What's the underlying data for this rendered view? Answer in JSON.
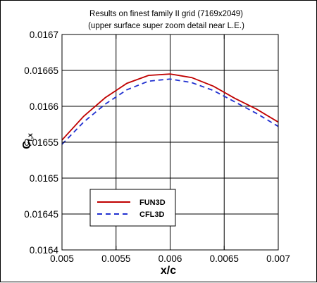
{
  "chart_data": {
    "type": "line",
    "title": "Results on finest family II grid (7169x2049)",
    "subtitle": "(upper surface super zoom detail near L.E.)",
    "xlabel": "x/c",
    "ylabel": "C",
    "ylabel_subscript": "f,x",
    "xlim": [
      0.005,
      0.007
    ],
    "ylim": [
      0.0164,
      0.0167
    ],
    "xticks": [
      0.005,
      0.0055,
      0.006,
      0.0065,
      0.007
    ],
    "xtick_labels": [
      "0.005",
      "0.0055",
      "0.006",
      "0.0065",
      "0.007"
    ],
    "yticks": [
      0.0164,
      0.01645,
      0.0165,
      0.01655,
      0.0166,
      0.01665,
      0.0167
    ],
    "ytick_labels": [
      "0.0164",
      "0.01645",
      "0.0165",
      "0.01655",
      "0.0166",
      "0.01665",
      "0.0167"
    ],
    "grid": true,
    "legend_position": "lower-left",
    "series": [
      {
        "name": "FUN3D",
        "color": "#c00000",
        "style": "solid",
        "x": [
          0.005,
          0.0052,
          0.0054,
          0.0056,
          0.0058,
          0.006,
          0.0062,
          0.0064,
          0.0066,
          0.0068,
          0.007
        ],
        "y": [
          0.016553,
          0.016586,
          0.016612,
          0.016632,
          0.016643,
          0.016645,
          0.01664,
          0.016628,
          0.016611,
          0.016596,
          0.016578
        ]
      },
      {
        "name": "CFL3D",
        "color": "#2030d0",
        "style": "dashed",
        "x": [
          0.005,
          0.0052,
          0.0054,
          0.0056,
          0.0058,
          0.006,
          0.0062,
          0.0064,
          0.0066,
          0.0068,
          0.007
        ],
        "y": [
          0.016547,
          0.016578,
          0.016603,
          0.016623,
          0.016635,
          0.016638,
          0.016633,
          0.016622,
          0.016606,
          0.01659,
          0.016572
        ]
      }
    ]
  }
}
